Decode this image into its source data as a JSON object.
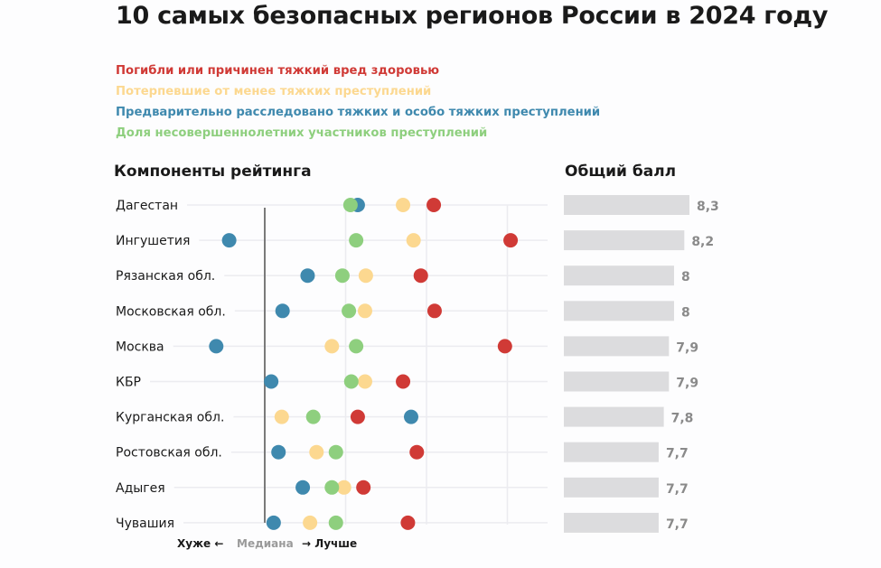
{
  "title": "10 самых безопасных регионов России в 2024 году",
  "legend": [
    {
      "label": "Погибли или причинен тяжкий вред здоровью",
      "color": "#d03a36",
      "key": "killed_or_harmed"
    },
    {
      "label": "Потерпевшие от менее тяжких преступлений",
      "color": "#fcd890",
      "key": "victims_minor"
    },
    {
      "label": "Предварительно расследовано тяжких и особо тяжких преступлений",
      "color": "#3f89ae",
      "key": "investigated"
    },
    {
      "label": "Доля несовершеннолетних участников преступлений",
      "color": "#8ecf7e",
      "key": "minors_share"
    }
  ],
  "section_left_title": "Компоненты рейтинга",
  "section_right_title": "Общий балл",
  "axis_notes": {
    "worse": "Хуже ←",
    "median": "Медиана",
    "better": "→ Лучше"
  },
  "chart_data": {
    "type": "scatter",
    "title": "10 самых безопасных регионов России в 2024 году",
    "xlabel": "Хуже ← Медиана → Лучше",
    "ylabel": "",
    "x_units": "relative to median (0 = median), gridline step = 1",
    "xlim": [
      -0.75,
      3.5
    ],
    "gridlines_x": [
      1,
      2,
      3
    ],
    "median_x": 0,
    "grid": true,
    "legend_position": "top-left",
    "categories": [
      "Дагестан",
      "Ингушетия",
      "Рязанская обл.",
      "Московская обл.",
      "Москва",
      "КБР",
      "Курганская обл.",
      "Ростовская обл.",
      "Адыгея",
      "Чувашия"
    ],
    "series": [
      {
        "name": "Погибли или причинен тяжкий вред здоровью",
        "color": "#d03a36",
        "values": [
          2.09,
          3.04,
          1.93,
          2.1,
          2.97,
          1.71,
          1.15,
          1.88,
          1.22,
          1.77
        ]
      },
      {
        "name": "Потерпевшие от менее тяжких преступлений",
        "color": "#fcd890",
        "values": [
          1.71,
          1.84,
          1.25,
          1.24,
          0.83,
          1.24,
          0.21,
          0.64,
          0.98,
          0.56
        ]
      },
      {
        "name": "Предварительно расследовано тяжких и особо тяжких преступлений",
        "color": "#3f89ae",
        "values": [
          1.15,
          -0.44,
          0.53,
          0.22,
          -0.6,
          0.08,
          1.81,
          0.17,
          0.47,
          0.11
        ]
      },
      {
        "name": "Доля несовершеннолетних участников преступлений",
        "color": "#8ecf7e",
        "values": [
          1.06,
          1.13,
          0.96,
          1.04,
          1.13,
          1.07,
          0.6,
          0.88,
          0.83,
          0.88
        ]
      }
    ],
    "total_score": {
      "title": "Общий балл",
      "values": [
        8.3,
        8.2,
        8.0,
        8.0,
        7.9,
        7.9,
        7.8,
        7.7,
        7.7,
        7.7
      ],
      "labels": [
        "8,3",
        "8,2",
        "8",
        "8",
        "7,9",
        "7,9",
        "7,8",
        "7,7",
        "7,7",
        "7,7"
      ],
      "bar_color": "#dcdcde"
    }
  }
}
